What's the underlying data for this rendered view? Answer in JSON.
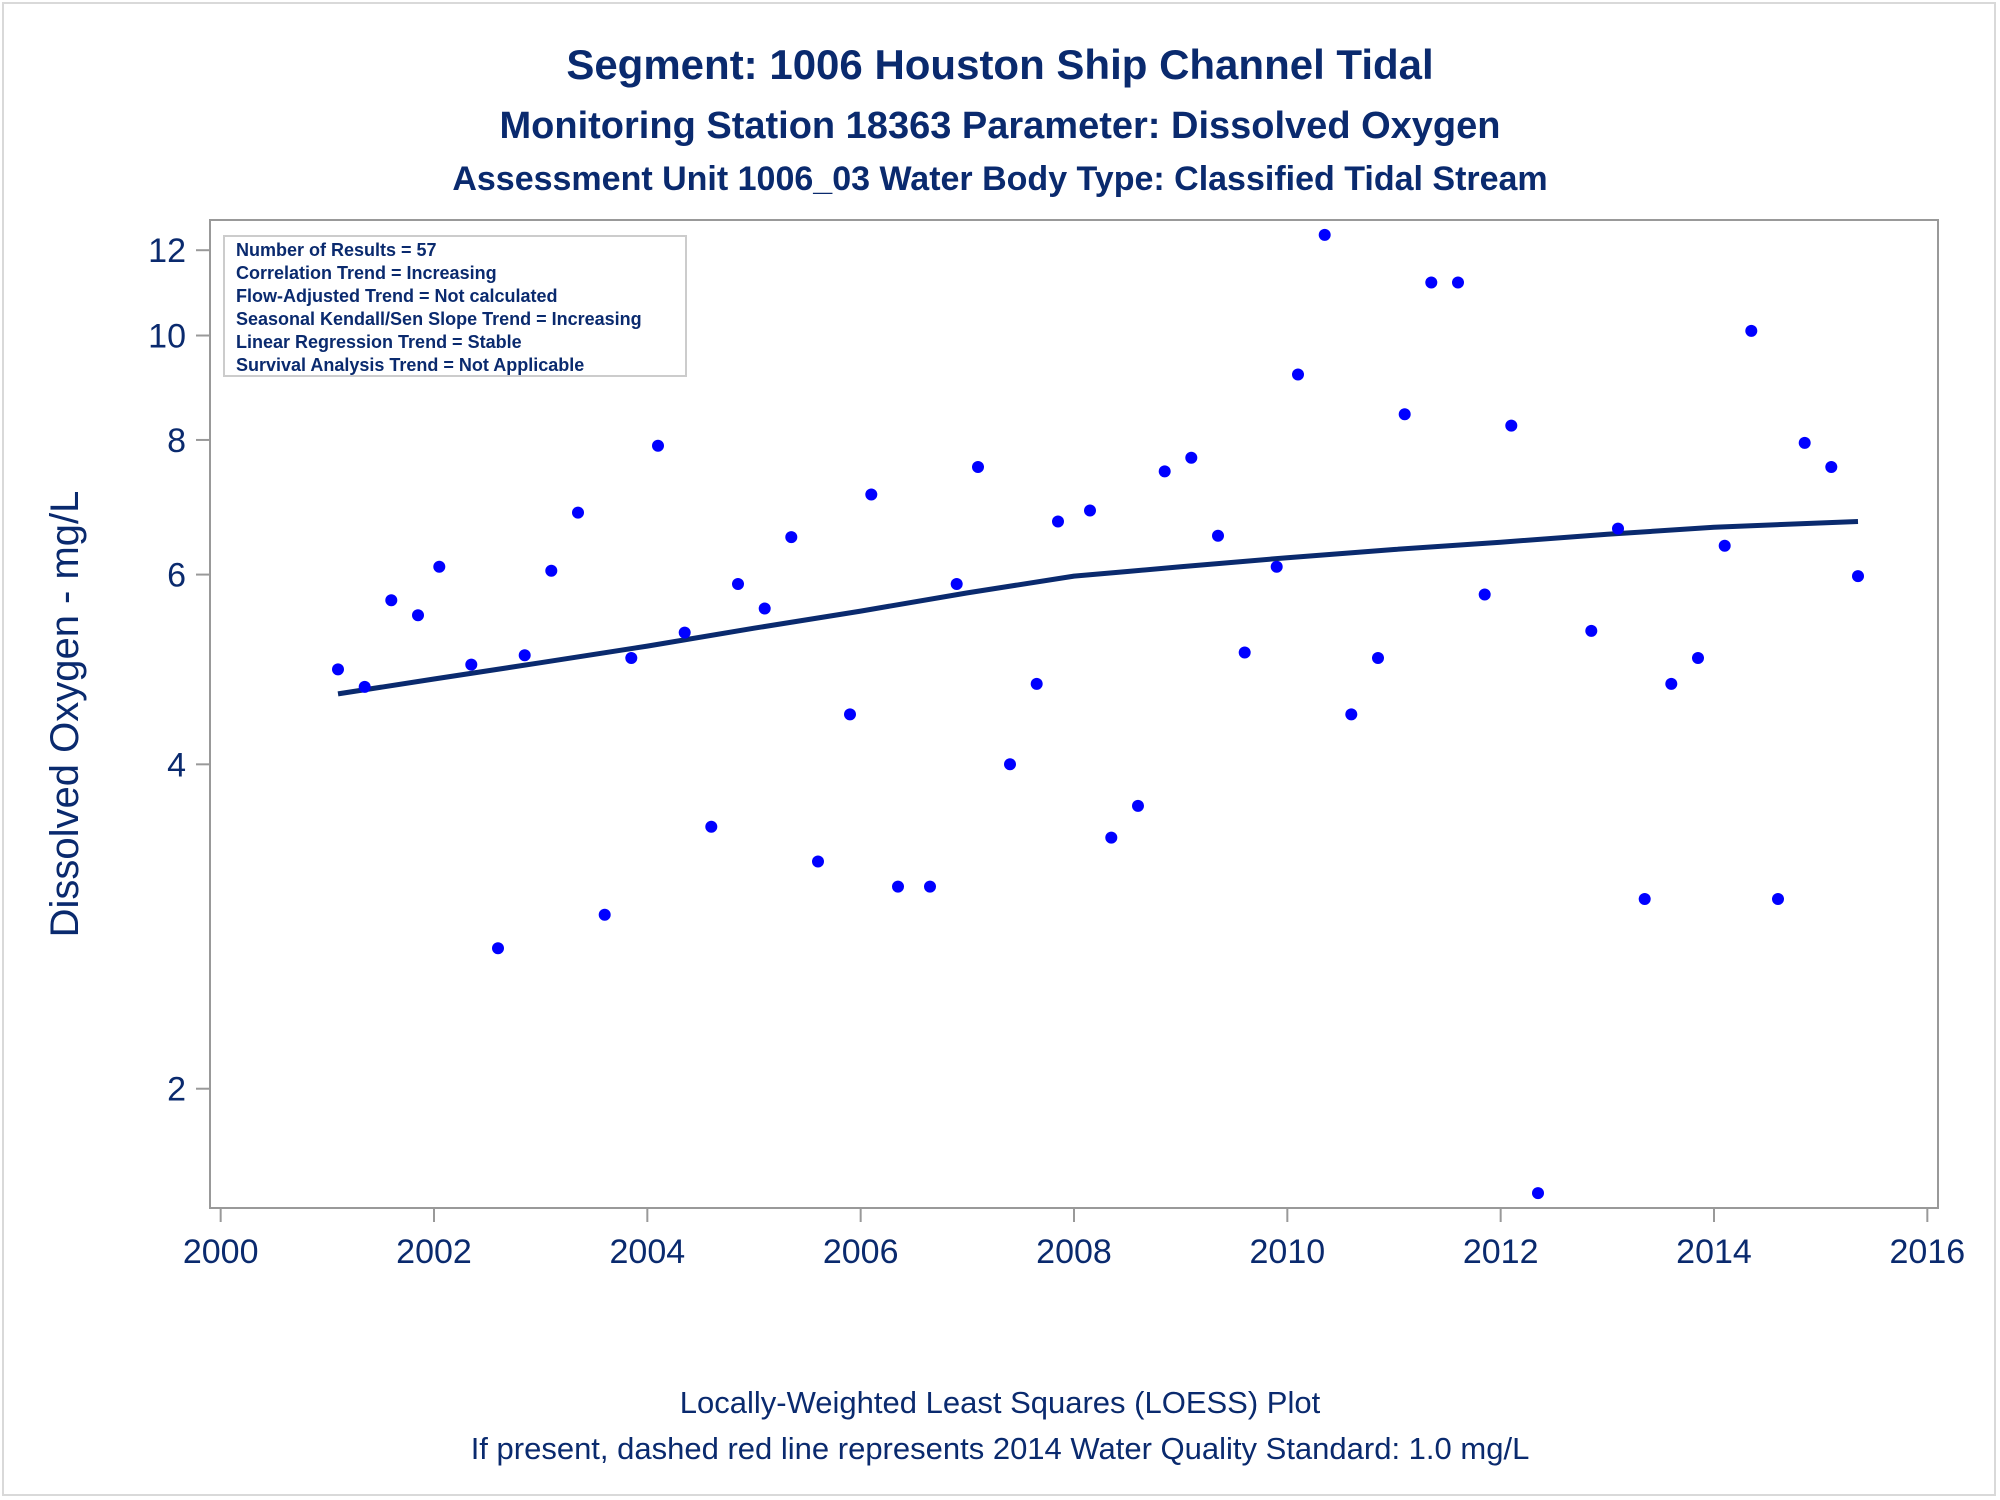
{
  "chart_data": {
    "type": "scatter",
    "title": "Segment: 1006  Houston Ship Channel Tidal",
    "subtitle_1": "Monitoring Station 18363 Parameter: Dissolved Oxygen",
    "subtitle_2": "Assessment Unit 1006_03   Water Body Type: Classified Tidal Stream",
    "ylabel": "Dissolved Oxygen - mg/L",
    "xlabel": "",
    "footnote_1": "Locally-Weighted Least Squares (LOESS) Plot",
    "footnote_2": "If present, dashed red line represents 2014 Water Quality Standard: 1.0 mg/L",
    "y_scale": "log",
    "ylim": [
      1.55,
      12.8
    ],
    "xlim": [
      1999.9,
      2016.1
    ],
    "x_ticks": [
      2000,
      2002,
      2004,
      2006,
      2008,
      2010,
      2012,
      2014,
      2016
    ],
    "y_ticks": [
      2,
      4,
      6,
      8,
      10,
      12
    ],
    "grid": false,
    "legend": "none",
    "stats_box": {
      "placement": "top-left",
      "lines": [
        "Number of Results = 57",
        "Correlation Trend = Increasing",
        "Flow-Adjusted Trend = Not calculated",
        "Seasonal Kendall/Sen Slope Trend = Increasing",
        "Linear Regression Trend = Stable",
        "Survival Analysis Trend = Not Applicable"
      ]
    },
    "colors": {
      "points": "#0000ff",
      "trend": "#0a2a6e",
      "text": "#0a2a6e",
      "axis": "#999999"
    },
    "points": [
      {
        "x": 2001.1,
        "y": 4.9
      },
      {
        "x": 2001.35,
        "y": 4.72
      },
      {
        "x": 2001.6,
        "y": 5.68
      },
      {
        "x": 2001.85,
        "y": 5.5
      },
      {
        "x": 2002.05,
        "y": 6.1
      },
      {
        "x": 2002.35,
        "y": 4.95
      },
      {
        "x": 2002.6,
        "y": 2.7
      },
      {
        "x": 2002.85,
        "y": 5.05
      },
      {
        "x": 2003.1,
        "y": 6.05
      },
      {
        "x": 2003.35,
        "y": 6.85
      },
      {
        "x": 2003.6,
        "y": 2.9
      },
      {
        "x": 2003.85,
        "y": 5.02
      },
      {
        "x": 2004.1,
        "y": 7.9
      },
      {
        "x": 2004.35,
        "y": 5.3
      },
      {
        "x": 2004.6,
        "y": 3.5
      },
      {
        "x": 2004.85,
        "y": 5.88
      },
      {
        "x": 2005.1,
        "y": 5.58
      },
      {
        "x": 2005.35,
        "y": 6.5
      },
      {
        "x": 2005.6,
        "y": 3.25
      },
      {
        "x": 2005.9,
        "y": 4.45
      },
      {
        "x": 2006.1,
        "y": 7.12
      },
      {
        "x": 2006.35,
        "y": 3.08
      },
      {
        "x": 2006.65,
        "y": 3.08
      },
      {
        "x": 2006.9,
        "y": 5.88
      },
      {
        "x": 2007.1,
        "y": 7.55
      },
      {
        "x": 2007.4,
        "y": 4.0
      },
      {
        "x": 2007.65,
        "y": 4.75
      },
      {
        "x": 2007.85,
        "y": 6.72
      },
      {
        "x": 2008.15,
        "y": 6.88
      },
      {
        "x": 2008.35,
        "y": 3.42
      },
      {
        "x": 2008.6,
        "y": 3.66
      },
      {
        "x": 2008.85,
        "y": 7.48
      },
      {
        "x": 2009.1,
        "y": 7.7
      },
      {
        "x": 2009.35,
        "y": 6.52
      },
      {
        "x": 2009.6,
        "y": 5.08
      },
      {
        "x": 2009.9,
        "y": 6.1
      },
      {
        "x": 2010.1,
        "y": 9.2
      },
      {
        "x": 2010.35,
        "y": 12.4
      },
      {
        "x": 2010.6,
        "y": 4.45
      },
      {
        "x": 2010.85,
        "y": 5.02
      },
      {
        "x": 2011.1,
        "y": 8.45
      },
      {
        "x": 2011.35,
        "y": 11.2
      },
      {
        "x": 2011.6,
        "y": 11.2
      },
      {
        "x": 2011.85,
        "y": 5.75
      },
      {
        "x": 2012.1,
        "y": 8.25
      },
      {
        "x": 2012.35,
        "y": 1.6
      },
      {
        "x": 2012.85,
        "y": 5.32
      },
      {
        "x": 2013.1,
        "y": 6.62
      },
      {
        "x": 2013.35,
        "y": 3.0
      },
      {
        "x": 2013.6,
        "y": 4.75
      },
      {
        "x": 2013.85,
        "y": 5.02
      },
      {
        "x": 2014.1,
        "y": 6.38
      },
      {
        "x": 2014.35,
        "y": 10.1
      },
      {
        "x": 2014.6,
        "y": 3.0
      },
      {
        "x": 2014.85,
        "y": 7.95
      },
      {
        "x": 2015.1,
        "y": 7.55
      },
      {
        "x": 2015.35,
        "y": 5.98
      }
    ],
    "trend_line": {
      "x": [
        2001.1,
        2002.0,
        2003.0,
        2004.0,
        2005.0,
        2006.0,
        2007.0,
        2008.0,
        2008.5,
        2009.0,
        2010.0,
        2011.0,
        2012.0,
        2013.0,
        2014.0,
        2015.35
      ],
      "y": [
        4.65,
        4.8,
        4.97,
        5.15,
        5.35,
        5.55,
        5.77,
        5.98,
        6.04,
        6.1,
        6.22,
        6.33,
        6.43,
        6.54,
        6.64,
        6.72
      ]
    }
  }
}
